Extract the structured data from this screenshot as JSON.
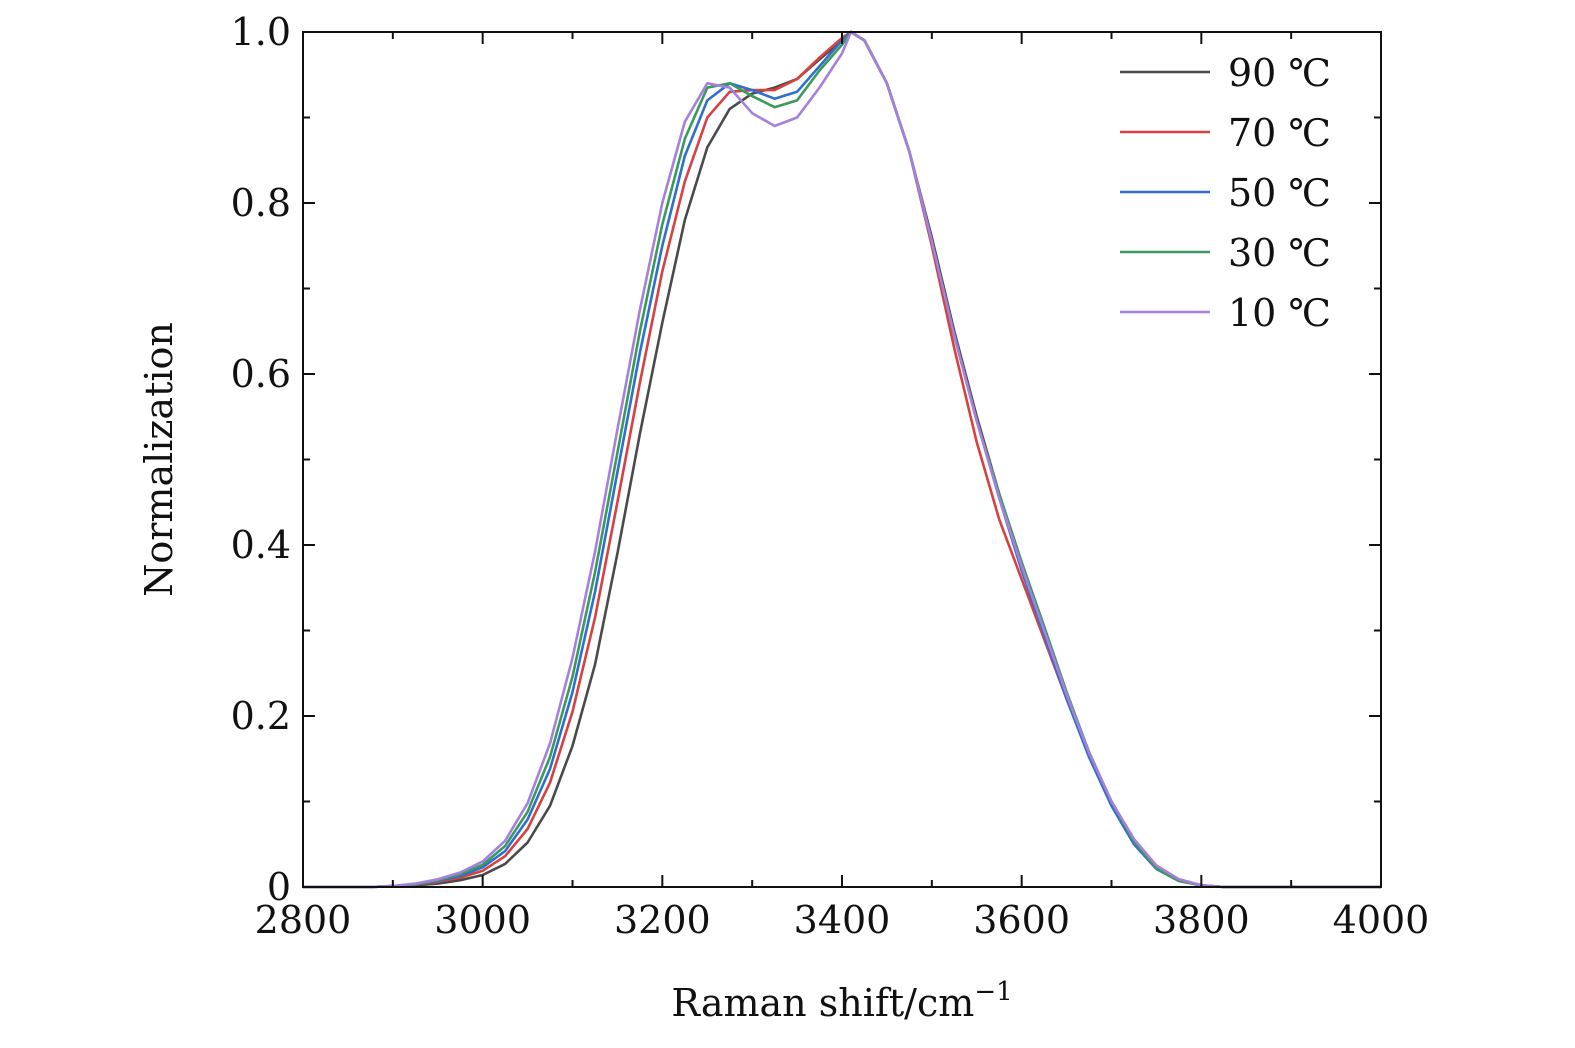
{
  "chart_data": {
    "type": "line",
    "title": "",
    "xlabel": "Raman shift/cm",
    "xlabel_superscript": "−1",
    "ylabel": "Normalization",
    "xlim": [
      2800,
      4000
    ],
    "ylim": [
      0,
      1.0
    ],
    "x_ticks": [
      2800,
      3000,
      3200,
      3400,
      3600,
      3800,
      4000
    ],
    "x_tick_labels": [
      "2800",
      "3000",
      "3200",
      "3400",
      "3600",
      "3800",
      "4000"
    ],
    "y_ticks": [
      0,
      0.2,
      0.4,
      0.6,
      0.8,
      1.0
    ],
    "y_tick_labels": [
      "0",
      "0.2",
      "0.4",
      "0.6",
      "0.8",
      "1.0"
    ],
    "grid": false,
    "legend_position": "top-right",
    "x": [
      2800,
      2825,
      2850,
      2875,
      2900,
      2925,
      2950,
      2975,
      3000,
      3025,
      3050,
      3075,
      3100,
      3125,
      3150,
      3175,
      3200,
      3225,
      3250,
      3275,
      3300,
      3325,
      3350,
      3375,
      3400,
      3410,
      3425,
      3450,
      3475,
      3500,
      3525,
      3550,
      3575,
      3600,
      3625,
      3650,
      3675,
      3700,
      3725,
      3750,
      3775,
      3800,
      3825,
      3850,
      3875,
      3900,
      3925,
      3950,
      3975,
      4000
    ],
    "series": [
      {
        "name": "90 ℃",
        "color": "#4a4a4a",
        "values": [
          0,
          0,
          0,
          0,
          0.001,
          0.002,
          0.004,
          0.008,
          0.014,
          0.027,
          0.052,
          0.095,
          0.165,
          0.26,
          0.39,
          0.53,
          0.66,
          0.78,
          0.865,
          0.91,
          0.928,
          0.935,
          0.945,
          0.968,
          0.99,
          1.0,
          0.99,
          0.94,
          0.86,
          0.76,
          0.65,
          0.55,
          0.46,
          0.375,
          0.3,
          0.225,
          0.155,
          0.098,
          0.053,
          0.023,
          0.008,
          0.002,
          0,
          0,
          0,
          0,
          0,
          0,
          0,
          0
        ]
      },
      {
        "name": "70 ℃",
        "color": "#d94040",
        "values": [
          0,
          0,
          0,
          0,
          0.001,
          0.003,
          0.006,
          0.011,
          0.019,
          0.036,
          0.068,
          0.122,
          0.205,
          0.315,
          0.45,
          0.59,
          0.72,
          0.825,
          0.9,
          0.93,
          0.932,
          0.932,
          0.945,
          0.97,
          0.993,
          1.0,
          0.99,
          0.94,
          0.86,
          0.75,
          0.63,
          0.52,
          0.43,
          0.36,
          0.29,
          0.22,
          0.155,
          0.1,
          0.055,
          0.025,
          0.009,
          0.002,
          0,
          0,
          0,
          0,
          0,
          0,
          0,
          0
        ]
      },
      {
        "name": "50 ℃",
        "color": "#2f6fd0",
        "values": [
          0,
          0,
          0,
          0,
          0.001,
          0.003,
          0.007,
          0.013,
          0.023,
          0.042,
          0.079,
          0.138,
          0.228,
          0.345,
          0.485,
          0.625,
          0.75,
          0.855,
          0.92,
          0.94,
          0.932,
          0.922,
          0.93,
          0.96,
          0.99,
          1.0,
          0.99,
          0.94,
          0.86,
          0.755,
          0.645,
          0.545,
          0.455,
          0.37,
          0.295,
          0.22,
          0.152,
          0.095,
          0.05,
          0.021,
          0.007,
          0.002,
          0,
          0,
          0,
          0,
          0,
          0,
          0,
          0
        ]
      },
      {
        "name": "30 ℃",
        "color": "#3a9a5c",
        "values": [
          0,
          0,
          0,
          0,
          0.001,
          0.003,
          0.008,
          0.015,
          0.026,
          0.048,
          0.088,
          0.152,
          0.246,
          0.368,
          0.508,
          0.65,
          0.775,
          0.875,
          0.935,
          0.94,
          0.925,
          0.912,
          0.92,
          0.955,
          0.985,
          1.0,
          0.99,
          0.94,
          0.86,
          0.755,
          0.645,
          0.545,
          0.46,
          0.38,
          0.305,
          0.228,
          0.158,
          0.1,
          0.053,
          0.022,
          0.007,
          0.002,
          0,
          0,
          0,
          0,
          0,
          0,
          0,
          0
        ]
      },
      {
        "name": "10 ℃",
        "color": "#a77fdc",
        "values": [
          0,
          0,
          0,
          0,
          0.001,
          0.004,
          0.009,
          0.017,
          0.03,
          0.054,
          0.098,
          0.168,
          0.268,
          0.392,
          0.535,
          0.675,
          0.8,
          0.895,
          0.94,
          0.935,
          0.905,
          0.89,
          0.9,
          0.935,
          0.975,
          1.0,
          0.99,
          0.94,
          0.86,
          0.755,
          0.645,
          0.545,
          0.455,
          0.375,
          0.3,
          0.225,
          0.157,
          0.1,
          0.056,
          0.025,
          0.009,
          0.002,
          0,
          0,
          0,
          0,
          0,
          0,
          0,
          0
        ]
      }
    ]
  }
}
